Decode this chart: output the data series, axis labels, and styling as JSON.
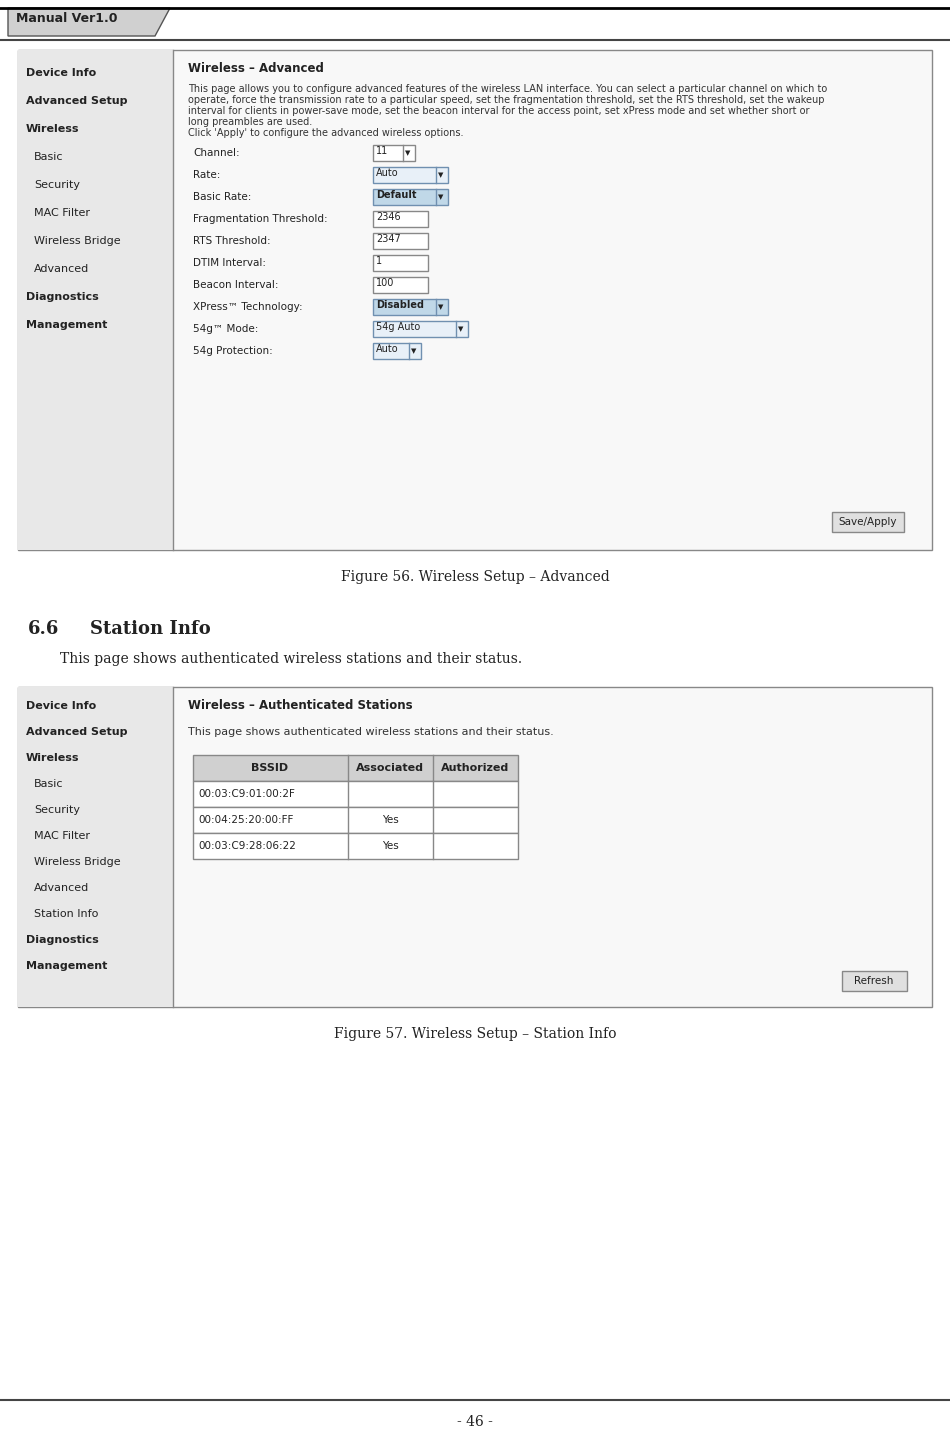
{
  "page_bg": "#ffffff",
  "header_tab_text": "Manual Ver1.0",
  "header_tab_bg": "#cccccc",
  "page_number": "- 46 -",
  "fig56_caption": "Figure 56. Wireless Setup – Advanced",
  "fig57_caption": "Figure 57. Wireless Setup – Station Info",
  "section_number": "6.6",
  "section_title": "Station Info",
  "section_body": "This page shows authenticated wireless stations and their status.",
  "fig56_title": "Wireless – Advanced",
  "fig56_desc_lines": [
    "This page allows you to configure advanced features of the wireless LAN interface. You can select a particular channel on which to",
    "operate, force the transmission rate to a particular speed, set the fragmentation threshold, set the RTS threshold, set the wakeup",
    "interval for clients in power-save mode, set the beacon interval for the access point, set xPress mode and set whether short or",
    "long preambles are used.",
    "Click 'Apply' to configure the advanced wireless options."
  ],
  "fig56_fields": [
    {
      "label": "Channel:",
      "value": "11",
      "type": "dropdown_sm"
    },
    {
      "label": "Rate:",
      "value": "Auto",
      "type": "dropdown_md"
    },
    {
      "label": "Basic Rate:",
      "value": "Default",
      "type": "dropdown_md_dark"
    },
    {
      "label": "Fragmentation Threshold:",
      "value": "2346",
      "type": "text"
    },
    {
      "label": "RTS Threshold:",
      "value": "2347",
      "type": "text"
    },
    {
      "label": "DTIM Interval:",
      "value": "1",
      "type": "text"
    },
    {
      "label": "Beacon Interval:",
      "value": "100",
      "type": "text"
    },
    {
      "label": "XPress™ Technology:",
      "value": "Disabled",
      "type": "dropdown_md_dark"
    },
    {
      "label": "54g™ Mode:",
      "value": "54g Auto",
      "type": "dropdown_lg"
    },
    {
      "label": "54g Protection:",
      "value": "Auto",
      "type": "dropdown_sm2"
    }
  ],
  "sidebar56": [
    "Device Info",
    "Advanced Setup",
    "Wireless",
    "  Basic",
    "  Security",
    "  MAC Filter",
    "  Wireless Bridge",
    "  Advanced",
    "Diagnostics",
    "Management"
  ],
  "sidebar56_bold": [
    "Device Info",
    "Advanced Setup",
    "Wireless",
    "Diagnostics",
    "Management"
  ],
  "fig57_title": "Wireless – Authenticated Stations",
  "fig57_desc": "This page shows authenticated wireless stations and their status.",
  "fig57_table_headers": [
    "BSSID",
    "Associated",
    "Authorized"
  ],
  "fig57_table_rows": [
    [
      "00:03:C9:01:00:2F",
      "",
      ""
    ],
    [
      "00:04:25:20:00:FF",
      "Yes",
      ""
    ],
    [
      "00:03:C9:28:06:22",
      "Yes",
      ""
    ]
  ],
  "sidebar57": [
    "Device Info",
    "Advanced Setup",
    "Wireless",
    "  Basic",
    "  Security",
    "  MAC Filter",
    "  Wireless Bridge",
    "  Advanced",
    "  Station Info",
    "Diagnostics",
    "Management"
  ],
  "sidebar57_bold": [
    "Device Info",
    "Advanced Setup",
    "Wireless",
    "  Basic",
    "  Security",
    "  MAC Filter",
    "  Wireless Bridge",
    "  Advanced",
    "  Station Info",
    "Diagnostics",
    "Management"
  ]
}
